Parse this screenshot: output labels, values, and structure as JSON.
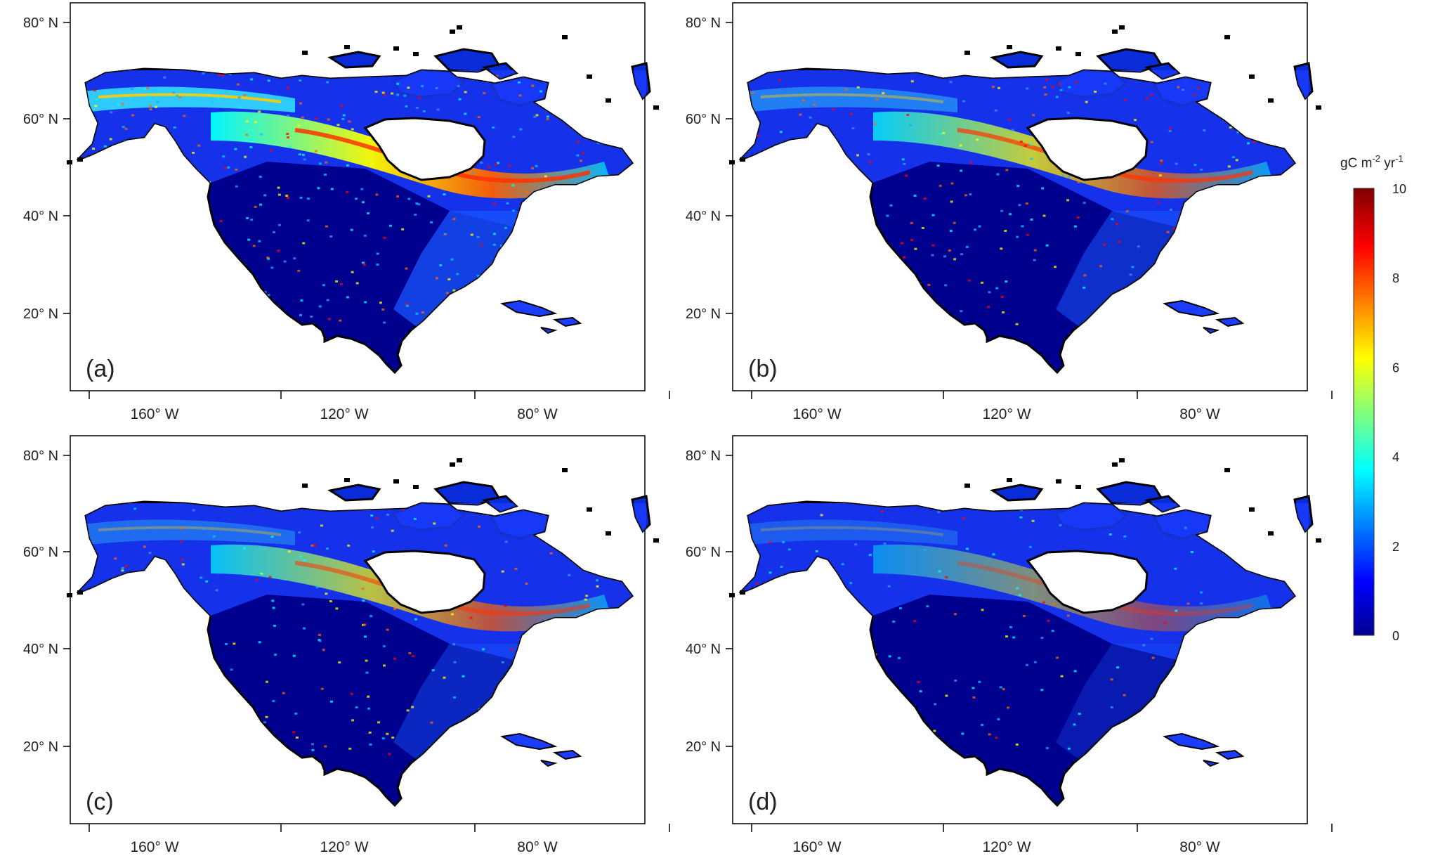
{
  "figure": {
    "panels": [
      {
        "label": "(a)"
      },
      {
        "label": "(b)"
      },
      {
        "label": "(c)"
      },
      {
        "label": "(d)"
      }
    ],
    "lat_ticks": [
      "80°  N",
      "60°  N",
      "40°  N",
      "20°  N"
    ],
    "lon_ticks": [
      "160°  W",
      "120°  W",
      "80°  W"
    ],
    "colorbar": {
      "title_base": "gC m",
      "title_exp1": "-2",
      "title_mid": " yr",
      "title_exp2": "-1",
      "ticks": [
        "10",
        "8",
        "6",
        "4",
        "2",
        "0"
      ],
      "range": [
        0,
        10
      ],
      "colormap": "jet",
      "colors": [
        "#00008f",
        "#0000ff",
        "#00ffff",
        "#ffff00",
        "#ff0000",
        "#800000"
      ]
    }
  }
}
